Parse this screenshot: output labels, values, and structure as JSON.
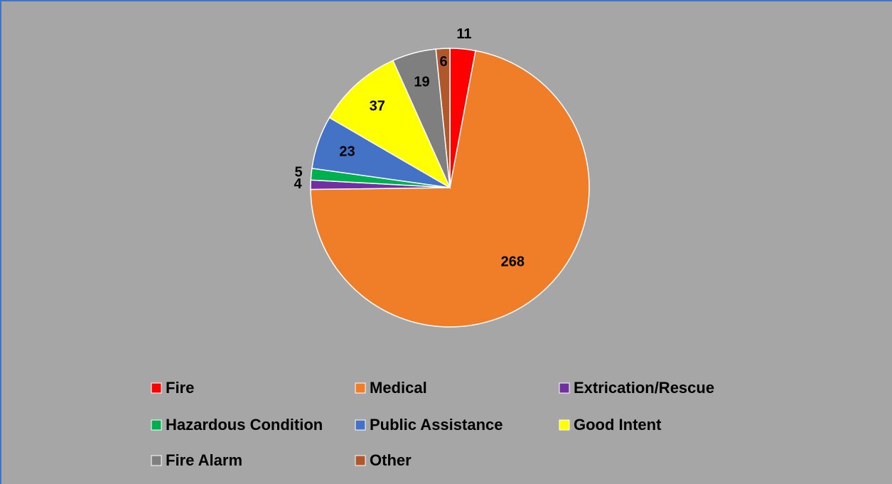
{
  "chart_data": {
    "type": "pie",
    "categories": [
      "Fire",
      "Medical",
      "Extrication/Rescue",
      "Hazardous Condition",
      "Public Assistance",
      "Good Intent",
      "Fire Alarm",
      "Other"
    ],
    "values": [
      11,
      268,
      4,
      5,
      23,
      37,
      19,
      6
    ],
    "colors": [
      "#ff0000",
      "#f07d28",
      "#7030a0",
      "#00b050",
      "#4472c4",
      "#ffff00",
      "#7f7f7f",
      "#b0582c"
    ],
    "legend": "bottom"
  }
}
